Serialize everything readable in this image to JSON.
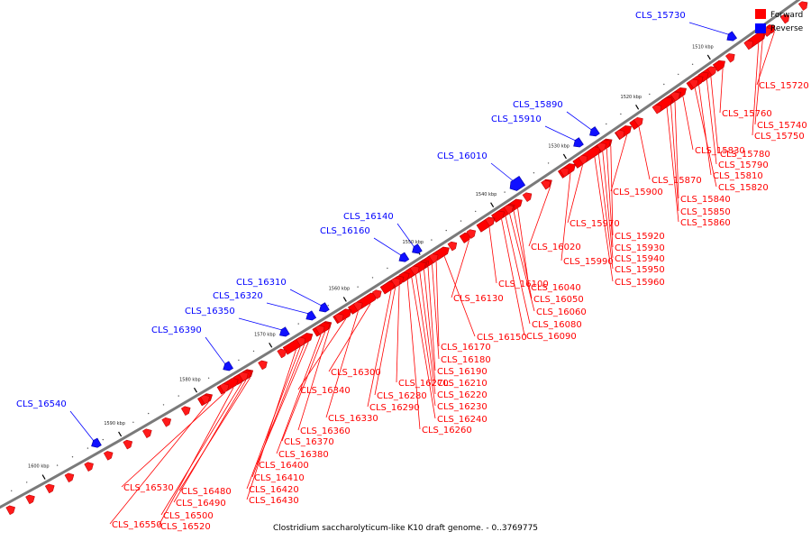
{
  "caption": "Clostridium saccharolyticum-like K10 draft genome. - 0..3769775",
  "legend": {
    "forward_label": "Forward",
    "reverse_label": "Reverse",
    "forward_color": "#ff0000",
    "reverse_color": "#0000ff"
  },
  "colors": {
    "axis": "#808080",
    "forward_label": "#ff0000",
    "reverse_label": "#0000ff"
  },
  "ticks": [
    "1510 kbp",
    "1520 kbp",
    "1530 kbp",
    "1540 kbp",
    "1550 kbp",
    "1560 kbp",
    "1570 kbp",
    "1580 kbp",
    "1590 kbp",
    "1600 kbp"
  ],
  "reverse_genes": [
    "CLS_15730",
    "CLS_15890",
    "CLS_15910",
    "CLS_16010",
    "CLS_16140",
    "CLS_16160",
    "CLS_16310",
    "CLS_16320",
    "CLS_16350",
    "CLS_16390",
    "CLS_16540"
  ],
  "forward_genes": [
    "CLS_15720",
    "CLS_15740",
    "CLS_15750",
    "CLS_15760",
    "CLS_15780",
    "CLS_15790",
    "CLS_15810",
    "CLS_15820",
    "CLS_15830",
    "CLS_15840",
    "CLS_15850",
    "CLS_15860",
    "CLS_15870",
    "CLS_15900",
    "CLS_15920",
    "CLS_15930",
    "CLS_15940",
    "CLS_15950",
    "CLS_15960",
    "CLS_15970",
    "CLS_15990",
    "CLS_16020",
    "CLS_16040",
    "CLS_16050",
    "CLS_16060",
    "CLS_16080",
    "CLS_16090",
    "CLS_16100",
    "CLS_16130",
    "CLS_16150",
    "CLS_16170",
    "CLS_16180",
    "CLS_16190",
    "CLS_16210",
    "CLS_16220",
    "CLS_16230",
    "CLS_16240",
    "CLS_16260",
    "CLS_16270",
    "CLS_16280",
    "CLS_16290",
    "CLS_16300",
    "CLS_16330",
    "CLS_16340",
    "CLS_16360",
    "CLS_16370",
    "CLS_16380",
    "CLS_16400",
    "CLS_16410",
    "CLS_16420",
    "CLS_16430",
    "CLS_16480",
    "CLS_16490",
    "CLS_16500",
    "CLS_16520",
    "CLS_16530",
    "CLS_16550"
  ]
}
